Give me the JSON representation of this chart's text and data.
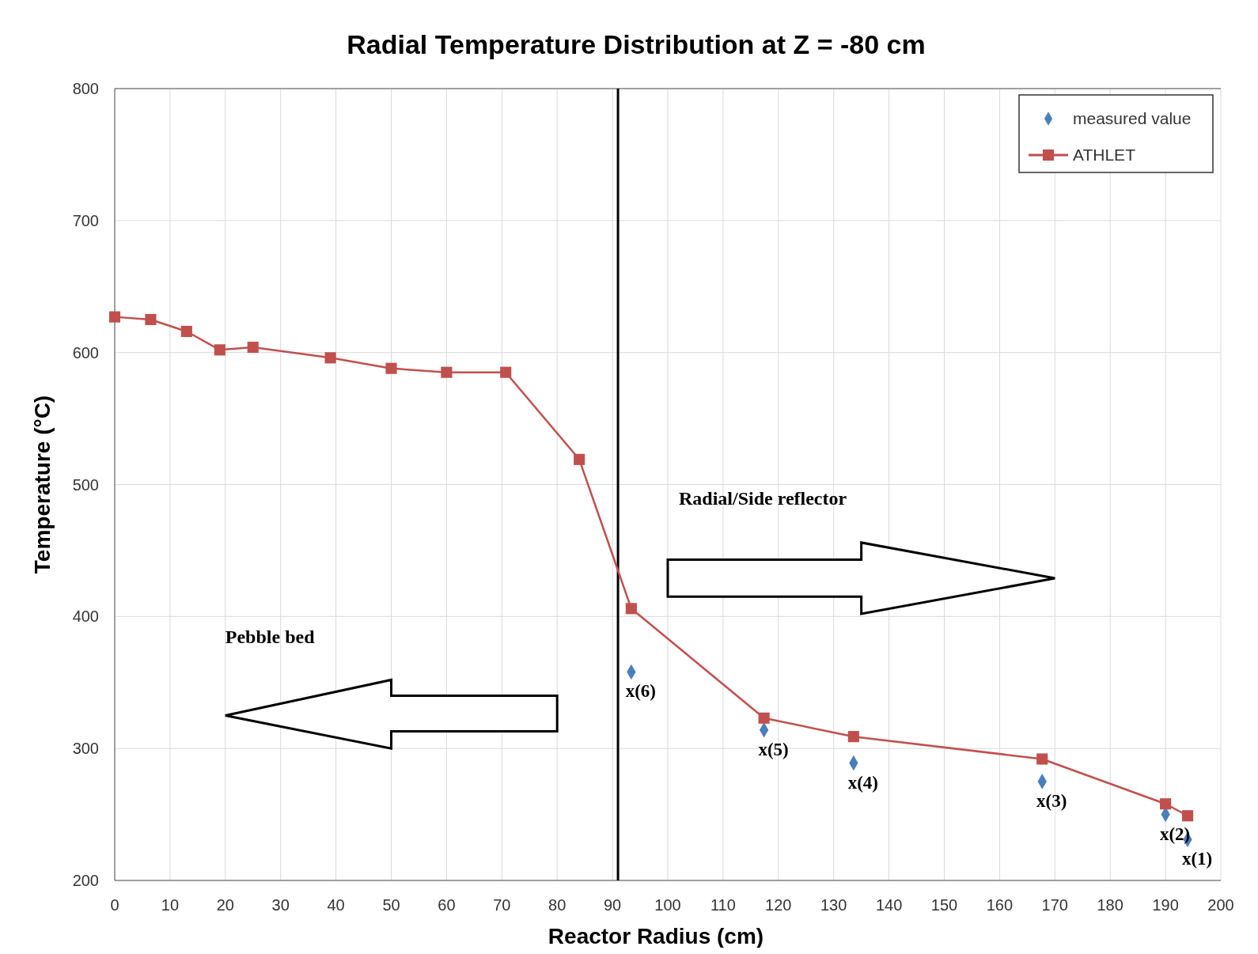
{
  "chart_data": {
    "type": "line",
    "title": "Radial Temperature Distribution at Z = -80 cm",
    "xlabel": "Reactor Radius (cm)",
    "ylabel": "Temperature (°C)",
    "xlim": [
      0,
      200
    ],
    "xticks": [
      0,
      10,
      20,
      30,
      40,
      50,
      60,
      70,
      80,
      90,
      100,
      110,
      120,
      130,
      140,
      150,
      160,
      170,
      180,
      190,
      200
    ],
    "ylim": [
      200,
      800
    ],
    "yticks": [
      200,
      300,
      400,
      500,
      600,
      700,
      800
    ],
    "grid": true,
    "legend": "top right",
    "series": [
      {
        "name": "measured value",
        "type": "scatter",
        "marker": "diamond",
        "color": "#4a7ebb",
        "x": [
          93.4,
          117.4,
          133.6,
          167.7,
          190,
          194
        ],
        "values": [
          358,
          314,
          289,
          275,
          250,
          231
        ]
      },
      {
        "name": "ATHLET",
        "type": "line",
        "marker": "square",
        "color": "#c0504d",
        "x": [
          0,
          6.5,
          13,
          19,
          25,
          39,
          50,
          60,
          70.7,
          84,
          93.4,
          117.4,
          133.6,
          167.7,
          190,
          194
        ],
        "values": [
          627,
          625,
          616,
          602,
          604,
          596,
          588,
          585,
          585,
          519,
          406,
          323,
          309,
          292,
          258,
          249
        ]
      }
    ],
    "ref_lines": [
      {
        "axis": "x",
        "value": 91,
        "color": "#000000"
      }
    ],
    "annotations": [
      "Pebble bed",
      "Radial/Side reflector",
      {
        "text": "x(6)",
        "x": 93.4,
        "y": 358
      },
      {
        "text": "x(5)",
        "x": 117.4,
        "y": 314
      },
      {
        "text": "x(4)",
        "x": 133.6,
        "y": 289
      },
      {
        "text": "x(3)",
        "x": 167.7,
        "y": 275
      },
      {
        "text": "x(2)",
        "x": 190,
        "y": 250
      },
      {
        "text": "x(1)",
        "x": 194,
        "y": 231
      }
    ]
  }
}
